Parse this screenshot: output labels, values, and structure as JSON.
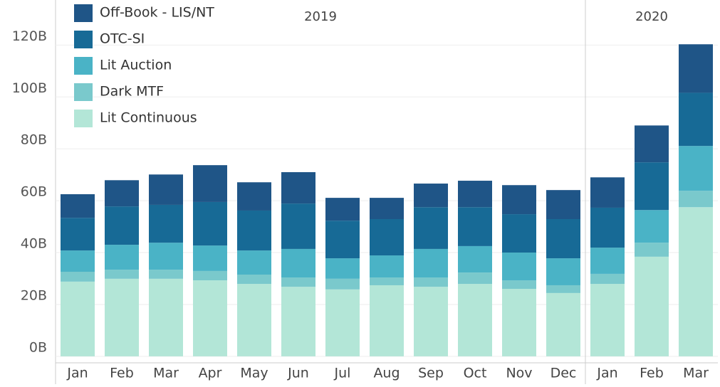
{
  "chart_data": {
    "type": "stacked_bar",
    "categories": [
      "Jan",
      "Feb",
      "Mar",
      "Apr",
      "May",
      "Jun",
      "Jul",
      "Aug",
      "Sep",
      "Oct",
      "Nov",
      "Dec",
      "Jan",
      "Feb",
      "Mar"
    ],
    "year_groups": [
      {
        "label": "2019",
        "months": 12
      },
      {
        "label": "2020",
        "months": 3
      }
    ],
    "series": [
      {
        "name": "Lit Continuous",
        "color": "#b3e6d7",
        "values": [
          28.8,
          29.9,
          29.9,
          29.3,
          27.9,
          26.8,
          25.8,
          27.4,
          26.8,
          27.9,
          26.0,
          24.4,
          27.9,
          38.4,
          57.5
        ]
      },
      {
        "name": "Dark MTF",
        "color": "#7ac9cc",
        "values": [
          3.8,
          3.5,
          3.5,
          3.6,
          3.6,
          3.6,
          4.1,
          3.0,
          3.6,
          4.4,
          3.3,
          3.0,
          3.9,
          5.4,
          6.3
        ]
      },
      {
        "name": "Lit Auction",
        "color": "#4ab3c6",
        "values": [
          8.2,
          9.6,
          10.4,
          9.8,
          9.3,
          11.0,
          7.9,
          8.5,
          11.0,
          10.2,
          10.7,
          10.4,
          10.1,
          12.6,
          17.3
        ]
      },
      {
        "name": "OTC-SI",
        "color": "#176a96",
        "values": [
          12.6,
          14.8,
          14.6,
          16.8,
          15.4,
          17.5,
          14.5,
          14.0,
          16.1,
          15.0,
          14.8,
          15.1,
          15.4,
          18.4,
          20.5
        ]
      },
      {
        "name": "Off-Book - LIS/NT",
        "color": "#1f5587",
        "values": [
          9.1,
          10.1,
          11.7,
          14.2,
          10.9,
          12.1,
          8.8,
          8.2,
          9.1,
          10.2,
          11.2,
          11.2,
          11.7,
          14.2,
          18.7
        ]
      }
    ],
    "ylim": [
      -2.5,
      136
    ],
    "yticks": [
      {
        "value": 0,
        "label": "0B"
      },
      {
        "value": 20,
        "label": "20B"
      },
      {
        "value": 40,
        "label": "40B"
      },
      {
        "value": 60,
        "label": "60B"
      },
      {
        "value": 80,
        "label": "80B"
      },
      {
        "value": 100,
        "label": "100B"
      },
      {
        "value": 120,
        "label": "120B"
      }
    ],
    "grid": true,
    "legend": "top-left"
  }
}
